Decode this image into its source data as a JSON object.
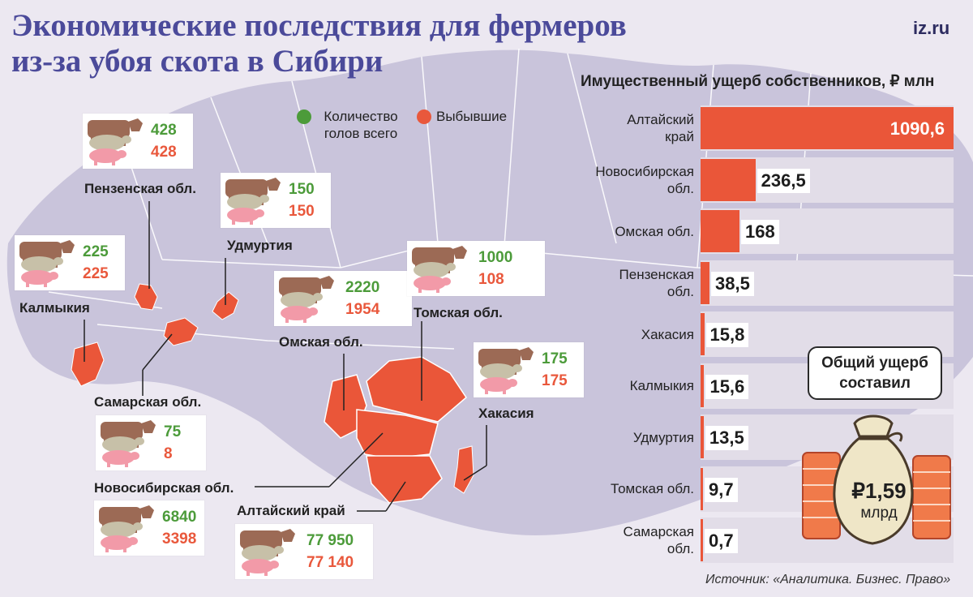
{
  "title_line1": "Экономические последствия для фермеров",
  "title_line2": "из-за убоя скота в Сибири",
  "logo": "iz.ru",
  "colors": {
    "total": "#4c9b3a",
    "lost": "#e9583c",
    "bar": "#ea5639",
    "title": "#4b4a9a",
    "map_land": "#c9c4db",
    "map_highlight": "#ea5639"
  },
  "legend": {
    "total_label": "Количество голов всего",
    "lost_label": "Выбывшие"
  },
  "icons": [
    "cow-icon",
    "sheep-icon",
    "pig-icon",
    "money-bag-icon"
  ],
  "livestock": [
    {
      "region": "Пензенская обл.",
      "total": "428",
      "lost": "428"
    },
    {
      "region": "Удмуртия",
      "total": "150",
      "lost": "150"
    },
    {
      "region": "Калмыкия",
      "total": "225",
      "lost": "225"
    },
    {
      "region": "Омская обл.",
      "total": "2220",
      "lost": "1954"
    },
    {
      "region": "Томская обл.",
      "total": "1000",
      "lost": "108"
    },
    {
      "region": "Хакасия",
      "total": "175",
      "lost": "175"
    },
    {
      "region": "Самарская обл.",
      "total": "75",
      "lost": "8"
    },
    {
      "region": "Новосибирская обл.",
      "total": "6840",
      "lost": "3398"
    },
    {
      "region": "Алтайский край",
      "total": "77 950",
      "lost": "77 140"
    }
  ],
  "chart_data": {
    "type": "bar",
    "orientation": "horizontal",
    "title": "Имущественный ущерб собственников, ₽ млн",
    "categories": [
      "Алтайский край",
      "Новосибирская обл.",
      "Омская обл.",
      "Пензенская обл.",
      "Хакасия",
      "Калмыкия",
      "Удмуртия",
      "Томская обл.",
      "Самарская обл."
    ],
    "values": [
      1090.6,
      236.5,
      168,
      38.5,
      15.8,
      15.6,
      13.5,
      9.7,
      0.7
    ],
    "value_labels": [
      "1090,6",
      "236,5",
      "168",
      "38,5",
      "15,8",
      "15,6",
      "13,5",
      "9,7",
      "0,7"
    ],
    "grid": false
  },
  "total_damage": {
    "callout": "Общий ущерб составил",
    "amount": "₽1,59",
    "unit": "млрд"
  },
  "source": "Источник: «Аналитика. Бизнес. Право»"
}
